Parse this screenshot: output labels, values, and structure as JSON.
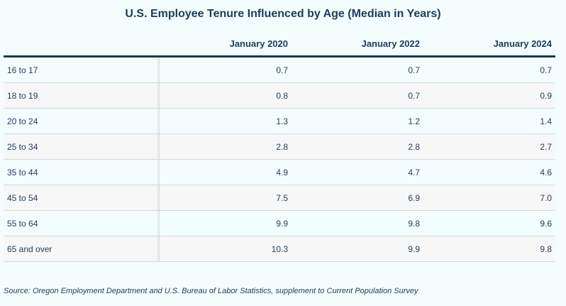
{
  "header": {
    "title": "U.S. Employee Tenure Influenced by Age (Median in Years)"
  },
  "table": {
    "columns": [
      "",
      "January 2020",
      "January 2022",
      "January 2024"
    ],
    "rows": [
      [
        "16 to 17",
        "0.7",
        "0.7",
        "0.7"
      ],
      [
        "18 to 19",
        "0.8",
        "0.7",
        "0.9"
      ],
      [
        "20 to 24",
        "1.3",
        "1.2",
        "1.4"
      ],
      [
        "25 to 34",
        "2.8",
        "2.8",
        "2.7"
      ],
      [
        "35 to 44",
        "4.9",
        "4.7",
        "4.6"
      ],
      [
        "45 to 54",
        "7.5",
        "6.9",
        "7.0"
      ],
      [
        "55 to 64",
        "9.9",
        "9.8",
        "9.6"
      ],
      [
        "65 and over",
        "10.3",
        "9.9",
        "9.8"
      ]
    ]
  },
  "footer": {
    "source": "Source: Oregon Employment Department and U.S. Bureau of Labor Statistics, supplement to Current Population Survey"
  }
}
